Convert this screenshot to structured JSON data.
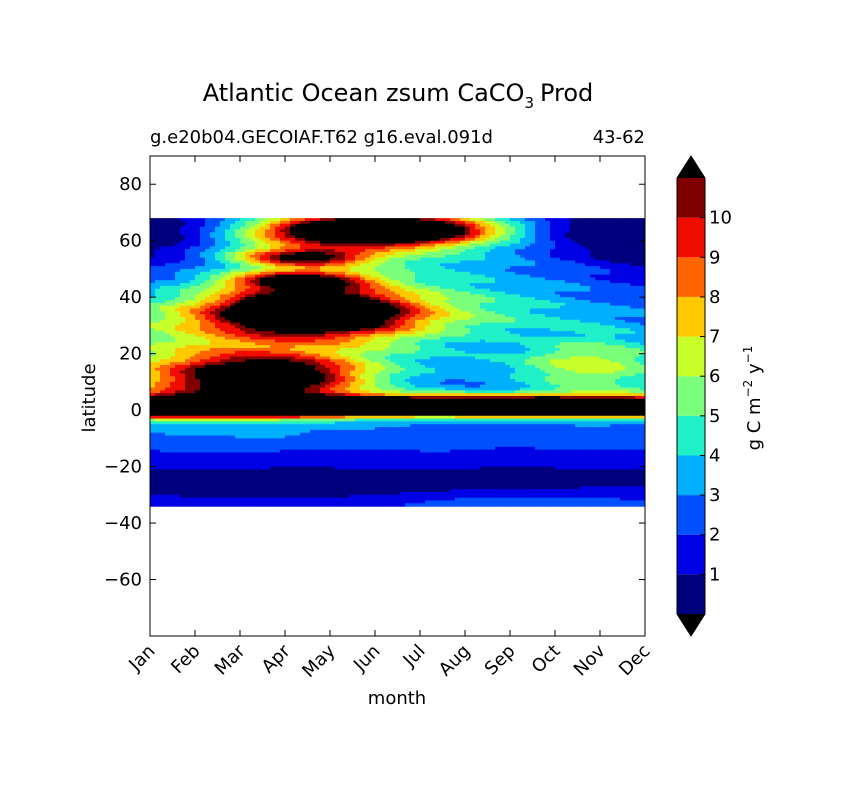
{
  "chart_data": {
    "type": "heatmap",
    "title_main": "Atlantic Ocean zsum CaCO",
    "title_sub": "3",
    "title_tail": "Prod",
    "case_label": "g.e20b04.GECOIAF.T62 g16.eval.091d",
    "years_label": "43-62",
    "xlabel": "month",
    "ylabel": "latitude",
    "months": [
      "Jan",
      "Feb",
      "Mar",
      "Apr",
      "May",
      "Jun",
      "Jul",
      "Aug",
      "Sep",
      "Oct",
      "Nov",
      "Dec"
    ],
    "xlim": [
      0,
      11
    ],
    "ylim": [
      -80,
      90
    ],
    "yticks": [
      80,
      60,
      40,
      20,
      0,
      -20,
      -40,
      -60
    ],
    "ytick_labels": [
      "80",
      "60",
      "40",
      "20",
      "0",
      "−20",
      "−40",
      "−60"
    ],
    "data_lat_range": [
      -34,
      68
    ],
    "colorbar": {
      "label_main": "g C m",
      "label_exp1": "−2",
      "label_mid": " y",
      "label_exp2": "−1",
      "levels": [
        0,
        1,
        2,
        3,
        4,
        5,
        6,
        7,
        8,
        9,
        10,
        11
      ],
      "tick_labels": [
        "1",
        "2",
        "3",
        "4",
        "5",
        "6",
        "7",
        "8",
        "9",
        "10"
      ],
      "colors": [
        "#00007f",
        "#0000e6",
        "#0050ff",
        "#00b0ff",
        "#20f0c8",
        "#7aff7a",
        "#c8ff28",
        "#ffc800",
        "#ff6400",
        "#f00d00",
        "#800000"
      ],
      "over_color": "#000000",
      "under_color": "#000000"
    }
  }
}
